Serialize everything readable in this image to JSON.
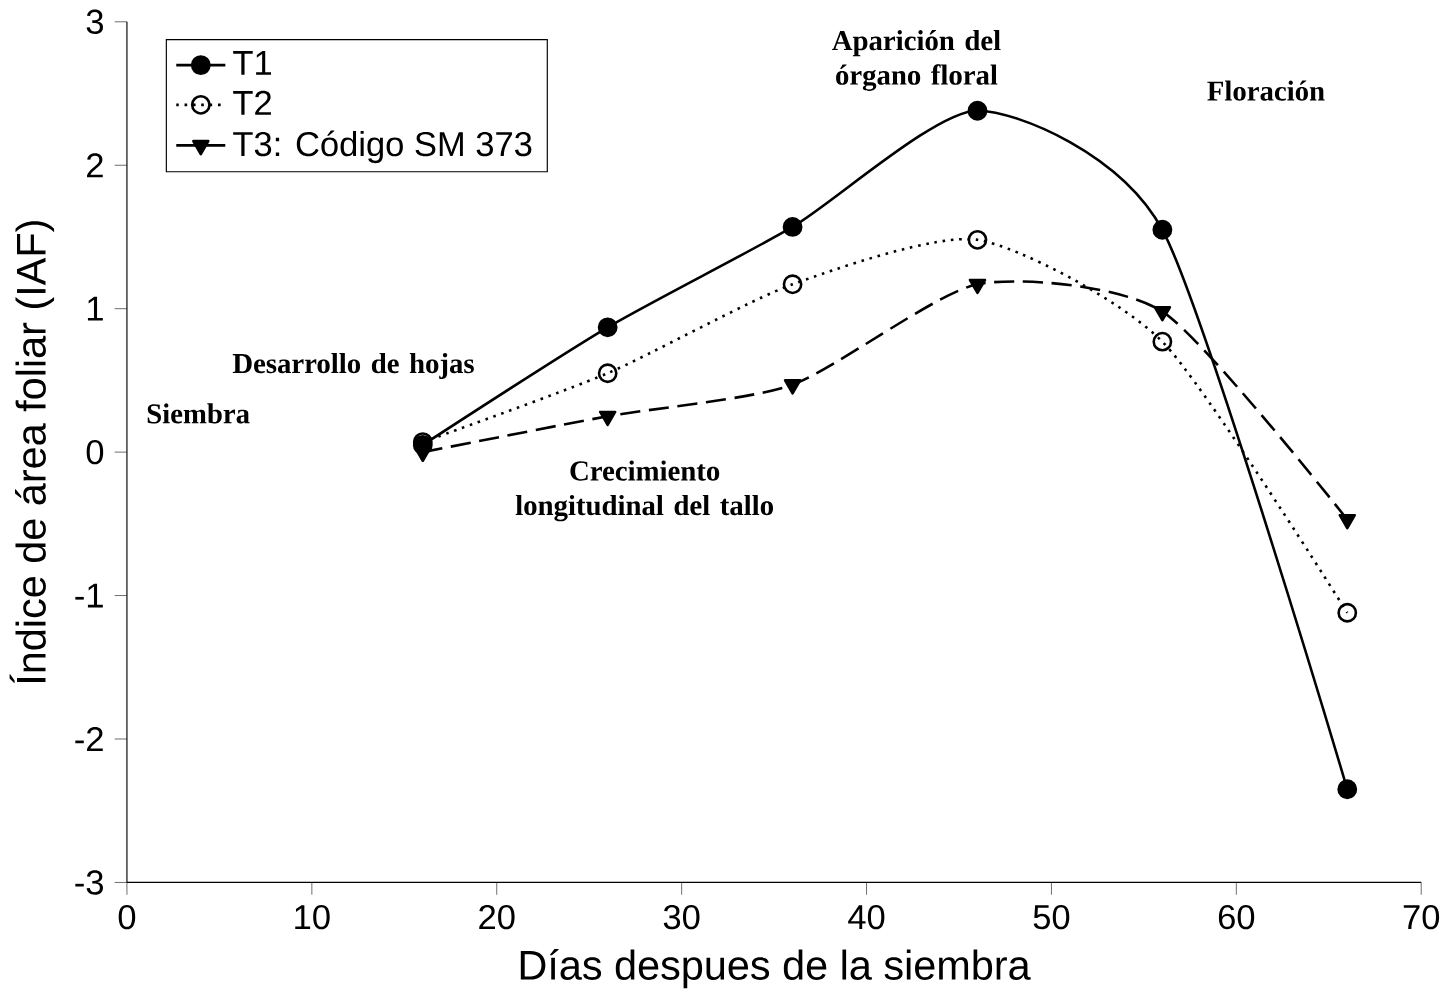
{
  "chart_data": {
    "type": "line",
    "xlabel": "Días despues de la siembra",
    "ylabel": "Índice de área foliar (IAF)",
    "x": [
      16,
      26,
      36,
      46,
      56,
      66
    ],
    "series": [
      {
        "name": "T1",
        "color": "#000000",
        "marker": "circle",
        "line_style": "solid",
        "values": [
          0.05,
          0.87,
          1.57,
          2.38,
          1.55,
          -2.35
        ]
      },
      {
        "name": "T2",
        "color": "#000000",
        "marker": "circle-open",
        "line_style": "dotted",
        "values": [
          0.07,
          0.55,
          1.17,
          1.48,
          0.77,
          -1.12
        ]
      },
      {
        "name": "T3: Código SM 373",
        "color": "#000000",
        "marker": "triangle-down",
        "line_style": "dashed",
        "values": [
          0.0,
          0.25,
          0.47,
          1.17,
          0.98,
          -0.47
        ]
      }
    ],
    "xlim": [
      0,
      70
    ],
    "ylim": [
      -3,
      3
    ],
    "xticks": [
      0,
      10,
      20,
      30,
      40,
      50,
      60,
      70
    ],
    "yticks": [
      -3,
      -2,
      -1,
      0,
      1,
      2,
      3
    ],
    "legend": "top left",
    "grid": false,
    "annotations": [
      "Siembra",
      "Desarrollo de hojas",
      "Crecimiento longitudinal del tallo",
      "Aparición del órgano floral",
      "Floración"
    ]
  }
}
